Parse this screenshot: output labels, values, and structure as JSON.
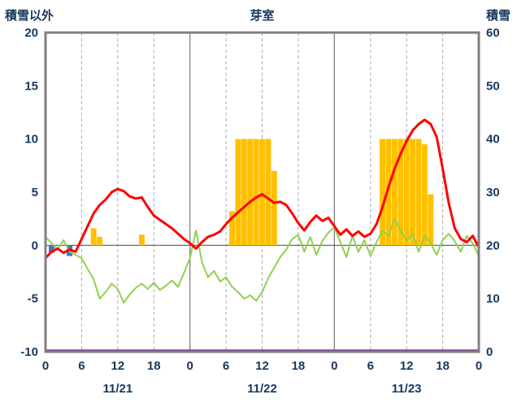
{
  "header": {
    "left_label": "積雪以外",
    "title": "芽室",
    "right_label": "積雪"
  },
  "colors": {
    "text": "#17375E",
    "frame": "#808080",
    "grid_dashed": "#ABABAB",
    "grid_solid": "#808080",
    "zero_line": "#595959",
    "temperature_red": "#FF0000",
    "green_line": "#92D050",
    "sunshine_orange": "#FFC000",
    "precip_blue": "#4472C4",
    "snow_purple": "#7030A0"
  },
  "chart_data": {
    "type": "line+bar",
    "title": "芽室",
    "left_axis": {
      "label": "積雪以外",
      "min": -10,
      "max": 20,
      "ticks": [
        20,
        15,
        10,
        5,
        0,
        -5,
        -10
      ]
    },
    "right_axis": {
      "label": "積雪",
      "min": 0,
      "max": 60,
      "ticks": [
        60,
        50,
        40,
        30,
        20,
        10,
        0
      ]
    },
    "x_hours_total": 72,
    "x_tick_hours": [
      0,
      6,
      12,
      18,
      24,
      30,
      36,
      42,
      48,
      54,
      60,
      66,
      72
    ],
    "x_tick_labels": [
      "0",
      "6",
      "12",
      "18",
      "0",
      "6",
      "12",
      "18",
      "0",
      "6",
      "12",
      "18",
      "0"
    ],
    "day_labels": [
      {
        "label": "11/21",
        "hour": 12
      },
      {
        "label": "11/22",
        "hour": 36
      },
      {
        "label": "11/23",
        "hour": 60
      }
    ],
    "grid": {
      "vertical_dashed_hours": [
        6,
        12,
        18,
        30,
        36,
        42,
        54,
        60,
        66
      ],
      "vertical_solid_hours": [
        24,
        48
      ],
      "zero_line": true
    },
    "series": {
      "temperature_red": {
        "name": "red-line",
        "axis": "left",
        "values": [
          -1.2,
          -0.6,
          -0.3,
          -0.7,
          -0.4,
          -0.6,
          0.6,
          1.8,
          3.0,
          3.8,
          4.3,
          5.0,
          5.3,
          5.1,
          4.6,
          4.4,
          4.5,
          3.6,
          2.8,
          2.4,
          2.0,
          1.6,
          1.1,
          0.6,
          0.2,
          -0.3,
          0.3,
          0.8,
          1.0,
          1.3,
          2.0,
          2.6,
          3.1,
          3.6,
          4.1,
          4.5,
          4.8,
          4.4,
          4.0,
          4.1,
          3.8,
          3.0,
          2.1,
          1.4,
          2.2,
          2.8,
          2.3,
          2.6,
          1.8,
          1.0,
          1.5,
          0.9,
          1.3,
          0.8,
          1.1,
          2.0,
          3.6,
          5.5,
          7.2,
          8.6,
          9.8,
          10.8,
          11.4,
          11.8,
          11.4,
          10.2,
          7.2,
          4.0,
          1.6,
          0.6,
          0.3,
          0.9,
          -0.2
        ]
      },
      "green_line": {
        "name": "green-line",
        "axis": "left",
        "values": [
          0.8,
          0.2,
          -0.4,
          0.5,
          -0.6,
          -0.9,
          -1.2,
          -2.2,
          -3.2,
          -5.0,
          -4.4,
          -3.6,
          -4.1,
          -5.4,
          -4.6,
          -4.0,
          -3.6,
          -4.1,
          -3.5,
          -4.2,
          -3.8,
          -3.3,
          -3.9,
          -2.6,
          -1.2,
          1.4,
          -1.6,
          -3.0,
          -2.4,
          -3.4,
          -3.0,
          -3.9,
          -4.4,
          -5.0,
          -4.7,
          -5.2,
          -4.4,
          -3.1,
          -2.1,
          -1.1,
          -0.4,
          0.6,
          1.0,
          -0.6,
          0.8,
          -0.9,
          0.4,
          1.2,
          1.7,
          0.3,
          -1.1,
          0.9,
          -0.6,
          0.5,
          -1.0,
          0.3,
          1.4,
          0.9,
          2.5,
          1.4,
          0.4,
          1.1,
          -0.6,
          0.9,
          0.2,
          -0.9,
          0.5,
          1.1,
          0.4,
          -0.6,
          0.9,
          0.2,
          -1.0
        ]
      },
      "sunshine_bars": {
        "name": "sunshine-bars",
        "axis": "left",
        "bars": [
          [
            8,
            1.6
          ],
          [
            9,
            0.8
          ],
          [
            16,
            1.0
          ],
          [
            31,
            3.2
          ],
          [
            32,
            10
          ],
          [
            33,
            10
          ],
          [
            34,
            10
          ],
          [
            35,
            10
          ],
          [
            36,
            10
          ],
          [
            37,
            10
          ],
          [
            38,
            7.0
          ],
          [
            56,
            10
          ],
          [
            57,
            10
          ],
          [
            58,
            10
          ],
          [
            59,
            10
          ],
          [
            60,
            10
          ],
          [
            61,
            10
          ],
          [
            62,
            10
          ],
          [
            63,
            9.5
          ],
          [
            64,
            4.8
          ]
        ]
      },
      "precip_bars": {
        "name": "precip-bars",
        "axis": "left",
        "bars": [
          [
            1,
            -0.7
          ],
          [
            4,
            -1.0
          ]
        ]
      },
      "snow_depth": {
        "name": "snow-depth-line",
        "axis": "right",
        "points": [
          [
            0,
            0
          ],
          [
            72,
            0
          ]
        ]
      }
    }
  }
}
